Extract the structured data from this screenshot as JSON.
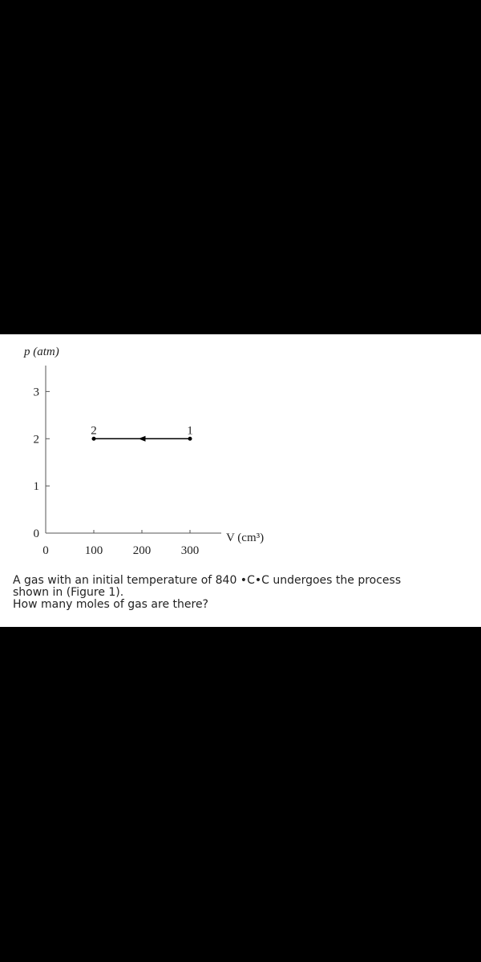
{
  "chart_data": {
    "type": "line",
    "y_label": "p (atm)",
    "x_label": "V (cm³)",
    "x": [
      300,
      100
    ],
    "values": [
      2,
      2
    ],
    "point_labels": [
      "1",
      "2"
    ],
    "color": "#000000",
    "xlim": [
      0,
      365
    ],
    "xticks": [
      0,
      100,
      200,
      300
    ],
    "ylim": [
      0,
      3.55
    ],
    "yticks": [
      0,
      1,
      2,
      3
    ]
  },
  "question": {
    "lines": [
      "A gas with an initial temperature of 840 •C•C undergoes the process",
      "shown in (Figure 1).",
      "How many moles of gas are there?"
    ]
  }
}
